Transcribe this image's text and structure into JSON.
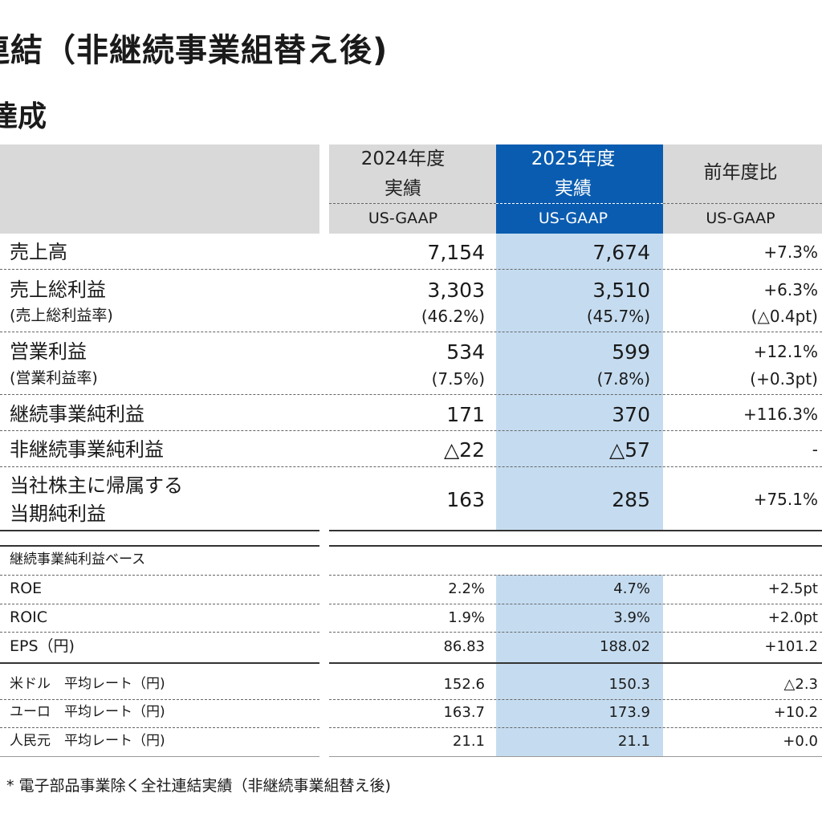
{
  "header": {
    "title": "連結（非継続事業組替え後)",
    "subtitle": "達成"
  },
  "table": {
    "columns": [
      {
        "line1": "2024年度",
        "line2": "実績",
        "basis": "US-GAAP"
      },
      {
        "line1": "2025年度",
        "line2": "実績",
        "basis": "US-GAAP"
      },
      {
        "line1": "前年度比",
        "line2": "",
        "basis": "US-GAAP"
      }
    ],
    "rows": [
      {
        "label": "売上高",
        "v1": "7,154",
        "v2": "7,674",
        "v3": "+7.3%"
      },
      {
        "label": "売上総利益",
        "v1": "3,303",
        "v2": "3,510",
        "v3": "+6.3%",
        "sublabel": "(売上総利益率)",
        "s1": "(46.2%)",
        "s2": "(45.7%)",
        "s3": "(△0.4pt)"
      },
      {
        "label": "営業利益",
        "v1": "534",
        "v2": "599",
        "v3": "+12.1%",
        "sublabel": "(営業利益率)",
        "s1": "(7.5%)",
        "s2": "(7.8%)",
        "s3": "(+0.3pt)"
      },
      {
        "label": "継続事業純利益",
        "v1": "171",
        "v2": "370",
        "v3": "+116.3%"
      },
      {
        "label": "非継続事業純利益",
        "v1": "△22",
        "v2": "△57",
        "v3": "-"
      },
      {
        "label_line1": "当社株主に帰属する",
        "label_line2": "当期純利益",
        "v1": "163",
        "v2": "285",
        "v3": "+75.1%"
      }
    ],
    "section_label": "継続事業純利益ベース",
    "ratio_rows": [
      {
        "label": "ROE",
        "v1": "2.2%",
        "v2": "4.7%",
        "v3": "+2.5pt"
      },
      {
        "label": "ROIC",
        "v1": "1.9%",
        "v2": "3.9%",
        "v3": "+2.0pt"
      },
      {
        "label": "EPS（円)",
        "v1": "86.83",
        "v2": "188.02",
        "v3": "+101.2"
      }
    ],
    "fx_rows": [
      {
        "label": "米ドル　平均レート（円)",
        "v1": "152.6",
        "v2": "150.3",
        "v3": "△2.3"
      },
      {
        "label": "ユーロ　平均レート（円)",
        "v1": "163.7",
        "v2": "173.9",
        "v3": "+10.2"
      },
      {
        "label": "人民元　平均レート（円)",
        "v1": "21.1",
        "v2": "21.1",
        "v3": "+0.0"
      }
    ]
  },
  "footnote": "* 電子部品事業除く全社連結実績（非継続事業組替え後)",
  "colors": {
    "header_gray": "#d9d9d9",
    "header_blue": "#0a5cb0",
    "highlight_column": "#c5dcf0"
  }
}
